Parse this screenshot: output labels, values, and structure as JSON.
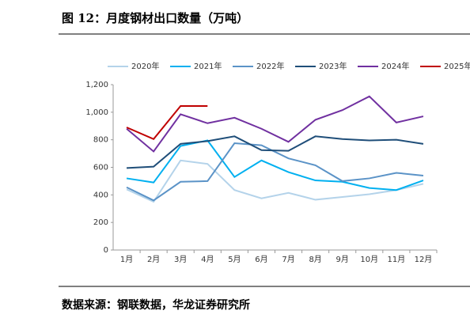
{
  "chart_data": {
    "type": "line",
    "title": "图 12：月度钢材出口数量（万吨）",
    "source": "数据来源：钢联数据，华龙证券研究所",
    "categories": [
      "1月",
      "2月",
      "3月",
      "4月",
      "5月",
      "6月",
      "7月",
      "8月",
      "9月",
      "10月",
      "11月",
      "12月"
    ],
    "series": [
      {
        "name": "2020年",
        "color": "#b4d3ea",
        "values": [
          440,
          350,
          650,
          625,
          435,
          375,
          415,
          365,
          385,
          405,
          435,
          480
        ]
      },
      {
        "name": "2021年",
        "color": "#00b0f0",
        "values": [
          520,
          490,
          755,
          795,
          530,
          650,
          565,
          505,
          495,
          450,
          435,
          505
        ]
      },
      {
        "name": "2022年",
        "color": "#5b93c7",
        "values": [
          455,
          360,
          495,
          500,
          775,
          760,
          665,
          615,
          500,
          520,
          560,
          540
        ]
      },
      {
        "name": "2023年",
        "color": "#1f4e79",
        "values": [
          595,
          605,
          770,
          790,
          825,
          725,
          720,
          825,
          805,
          795,
          800,
          770
        ]
      },
      {
        "name": "2024年",
        "color": "#7030a0",
        "values": [
          880,
          715,
          985,
          920,
          960,
          880,
          785,
          945,
          1015,
          1115,
          925,
          970
        ]
      },
      {
        "name": "2025年",
        "color": "#c00000",
        "values": [
          890,
          805,
          1045,
          1045,
          null,
          null,
          null,
          null,
          null,
          null,
          null,
          null
        ]
      }
    ],
    "ylim": [
      0,
      1200
    ],
    "yticks": [
      0,
      200,
      400,
      600,
      800,
      {
        "value": 1000,
        "label": "1,000"
      },
      {
        "value": 1200,
        "label": "1,200"
      }
    ],
    "grid": false,
    "legend": "top"
  }
}
